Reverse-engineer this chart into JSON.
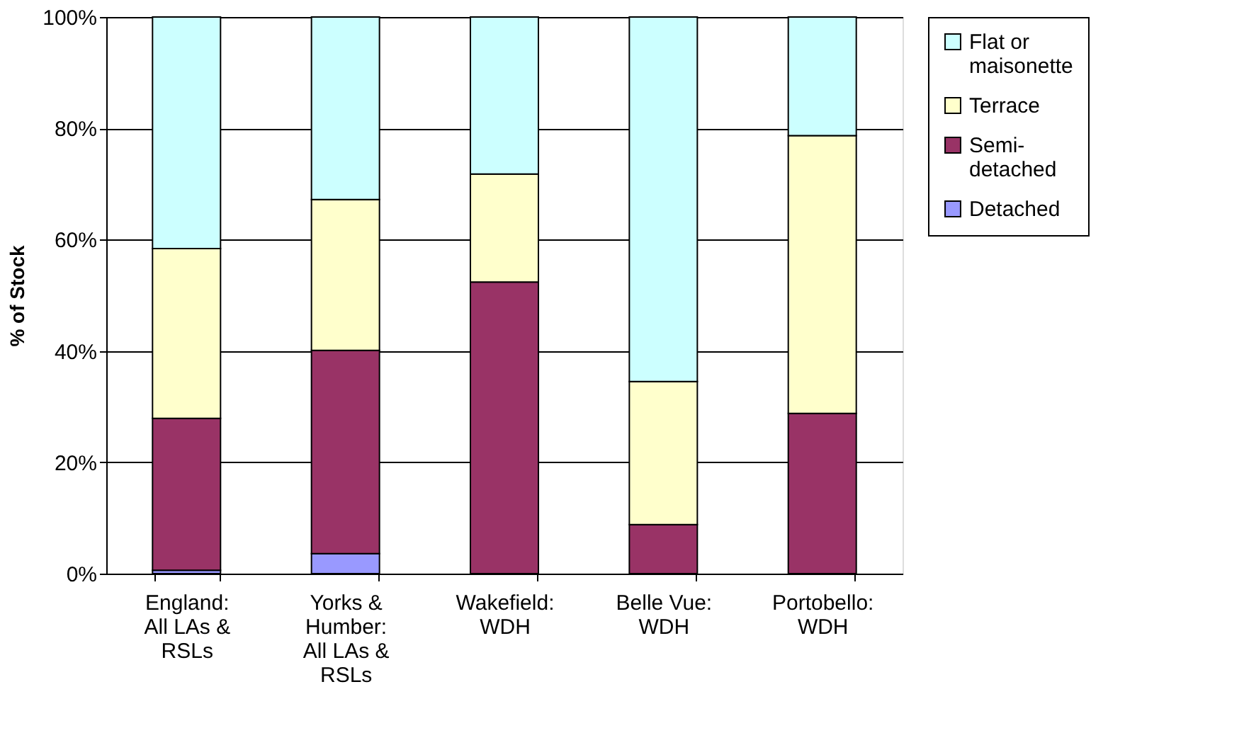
{
  "chart_data": {
    "type": "bar",
    "stacked": true,
    "ylabel": "% of Stock",
    "categories": [
      "England:\nAll LAs &\nRSLs",
      "Yorks &\nHumber:\nAll LAs &\nRSLs",
      "Wakefield:\nWDH",
      "Belle Vue:\nWDH",
      "Portobello:\nWDH"
    ],
    "series": [
      {
        "name": "Detached",
        "color": "#9999ff",
        "values": [
          0.6,
          3.6,
          null,
          0,
          0
        ]
      },
      {
        "name": "Semi-\ndetached",
        "color": "#993366",
        "values": [
          27.3,
          36.5,
          52.4,
          8.8,
          28.8
        ]
      },
      {
        "name": "Terrace",
        "color": "#ffffcc",
        "values": [
          30.5,
          27.1,
          19.4,
          25.7,
          49.9
        ]
      },
      {
        "name": "Flat or\nmaisonette",
        "color": "#ccffff",
        "values": [
          41.6,
          32.8,
          28.2,
          65.5,
          21.3
        ]
      }
    ],
    "ylim": [
      0,
      100
    ],
    "yticks": [
      {
        "value": 0,
        "label": "0%"
      },
      {
        "value": 20,
        "label": "20%"
      },
      {
        "value": 40,
        "label": "40%"
      },
      {
        "value": 60,
        "label": "60%"
      },
      {
        "value": 80,
        "label": "80%"
      },
      {
        "value": 100,
        "label": "100%"
      }
    ],
    "grid": "y",
    "legend": "right"
  }
}
